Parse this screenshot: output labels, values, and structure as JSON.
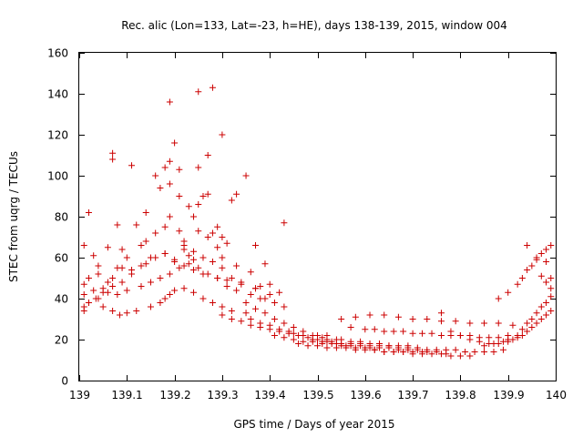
{
  "chart_data": {
    "type": "scatter",
    "title": "Rec. alic (Lon=133, Lat=-23, h=HE), days 138-139, 2015, window 004",
    "xlabel": "GPS time / Days of year 2015",
    "ylabel": "STEC from uqrg / TECUs",
    "xlim": [
      139,
      140
    ],
    "ylim": [
      0,
      160
    ],
    "x_ticks": [
      139,
      139.1,
      139.2,
      139.3,
      139.4,
      139.5,
      139.6,
      139.7,
      139.8,
      139.9,
      140
    ],
    "x_tick_labels": [
      "139",
      "139.1",
      "139.2",
      "139.3",
      "139.4",
      "139.5",
      "139.6",
      "139.7",
      "139.8",
      "139.9",
      "140"
    ],
    "y_ticks": [
      0,
      20,
      40,
      60,
      80,
      100,
      120,
      140,
      160
    ],
    "y_tick_labels": [
      "0",
      "20",
      "40",
      "60",
      "80",
      "100",
      "120",
      "140",
      "160"
    ],
    "grid": false,
    "legend": "none",
    "marker": "plus",
    "color": "#cc0000",
    "series": [
      {
        "x": [
          139.01,
          139.02,
          139.035,
          139.05,
          139.07,
          139.085,
          139.1,
          139.12,
          139.15,
          139.17,
          139.18,
          139.19,
          139.2,
          139.22,
          139.24,
          139.26,
          139.28,
          139.3,
          139.32,
          139.35,
          139.01,
          139.03,
          139.05,
          139.06,
          139.08,
          139.1,
          139.13,
          139.15,
          139.17,
          139.19,
          139.21,
          139.23,
          139.25,
          139.27,
          139.29,
          139.31,
          139.33,
          139.36,
          139.38,
          139.01,
          139.02,
          139.04,
          139.06,
          139.07,
          139.09,
          139.11,
          139.14,
          139.16,
          139.18,
          139.2,
          139.22,
          139.24,
          139.26,
          139.28,
          139.3,
          139.32,
          139.34,
          139.37,
          139.4,
          139.07,
          139.07,
          139.09,
          139.13,
          139.16,
          139.18,
          139.19,
          139.19,
          139.2,
          139.21,
          139.22,
          139.23,
          139.24,
          139.25,
          139.25,
          139.26,
          139.27,
          139.27,
          139.28,
          139.29,
          139.3,
          139.32,
          139.35,
          139.43,
          139.02,
          139.08,
          139.11,
          139.14,
          139.16,
          139.18,
          139.19,
          139.21,
          139.22,
          139.24,
          139.25,
          139.27,
          139.29,
          139.3,
          139.31,
          139.33,
          139.37,
          139.39,
          139.01,
          139.03,
          139.04,
          139.06,
          139.08,
          139.1,
          139.12,
          139.14,
          139.17,
          139.19,
          139.21,
          139.23,
          139.25,
          139.28,
          139.3,
          139.33,
          139.36,
          139.38,
          139.4,
          139.42,
          139.01,
          139.02,
          139.04,
          139.05,
          139.07,
          139.09,
          139.11,
          139.13,
          139.15,
          139.18,
          139.2,
          139.22,
          139.24,
          139.26,
          139.29,
          139.31,
          139.34,
          139.37,
          139.39,
          139.41,
          139.43,
          139.3,
          139.32,
          139.34,
          139.36,
          139.38,
          139.4,
          139.42,
          139.44,
          139.45,
          139.47,
          139.49,
          139.51,
          139.52,
          139.54,
          139.35,
          139.37,
          139.39,
          139.41,
          139.43,
          139.45,
          139.47,
          139.5,
          139.52,
          139.55,
          139.57,
          139.59,
          139.61,
          139.63,
          139.65,
          139.67,
          139.69,
          139.36,
          139.38,
          139.4,
          139.42,
          139.44,
          139.46,
          139.48,
          139.5,
          139.52,
          139.54,
          139.56,
          139.58,
          139.6,
          139.62,
          139.64,
          139.66,
          139.68,
          139.7,
          139.72,
          139.41,
          139.43,
          139.45,
          139.47,
          139.49,
          139.51,
          139.53,
          139.55,
          139.57,
          139.59,
          139.61,
          139.63,
          139.65,
          139.67,
          139.69,
          139.71,
          139.73,
          139.75,
          139.77,
          139.46,
          139.48,
          139.5,
          139.52,
          139.54,
          139.56,
          139.58,
          139.6,
          139.62,
          139.64,
          139.66,
          139.68,
          139.7,
          139.72,
          139.74,
          139.76,
          139.78,
          139.8,
          139.82,
          139.49,
          139.51,
          139.53,
          139.55,
          139.57,
          139.59,
          139.61,
          139.63,
          139.65,
          139.67,
          139.69,
          139.71,
          139.73,
          139.75,
          139.77,
          139.79,
          139.81,
          139.83,
          139.85,
          139.87,
          139.89,
          139.57,
          139.6,
          139.62,
          139.64,
          139.66,
          139.68,
          139.7,
          139.72,
          139.74,
          139.76,
          139.78,
          139.8,
          139.82,
          139.84,
          139.86,
          139.88,
          139.9,
          139.55,
          139.58,
          139.61,
          139.64,
          139.67,
          139.7,
          139.73,
          139.76,
          139.79,
          139.82,
          139.85,
          139.88,
          139.91,
          139.76,
          139.78,
          139.8,
          139.82,
          139.84,
          139.86,
          139.88,
          139.9,
          139.91,
          139.92,
          139.93,
          139.94,
          139.95,
          139.96,
          139.97,
          139.98,
          139.99,
          139.85,
          139.87,
          139.89,
          139.9,
          139.92,
          139.93,
          139.94,
          139.95,
          139.96,
          139.97,
          139.98,
          139.99,
          139.88,
          139.9,
          139.92,
          139.93,
          139.94,
          139.95,
          139.96,
          139.97,
          139.98,
          139.99,
          139.94,
          139.96,
          139.98,
          139.99,
          139.99,
          139.98,
          139.97
        ],
        "y": [
          36,
          38,
          40,
          36,
          34,
          32,
          33,
          34,
          36,
          38,
          40,
          42,
          44,
          45,
          43,
          40,
          38,
          36,
          34,
          33,
          42,
          44,
          45,
          43,
          42,
          44,
          46,
          48,
          50,
          52,
          55,
          57,
          55,
          52,
          50,
          46,
          44,
          42,
          40,
          47,
          50,
          52,
          48,
          50,
          55,
          54,
          57,
          60,
          62,
          59,
          66,
          63,
          60,
          58,
          55,
          50,
          48,
          45,
          42,
          108,
          111,
          64,
          66,
          72,
          75,
          96,
          107,
          116,
          73,
          64,
          61,
          80,
          104,
          141,
          90,
          110,
          70,
          143,
          65,
          120,
          88,
          100,
          77,
          82,
          76,
          105,
          82,
          100,
          104,
          136,
          103,
          68,
          59,
          86,
          91,
          75,
          70,
          67,
          91,
          66,
          57,
          66,
          61,
          56,
          65,
          55,
          60,
          76,
          68,
          94,
          80,
          90,
          85,
          73,
          72,
          60,
          56,
          53,
          46,
          47,
          43,
          34,
          38,
          40,
          43,
          46,
          48,
          52,
          56,
          60,
          62,
          58,
          56,
          54,
          52,
          50,
          49,
          47,
          45,
          40,
          38,
          36,
          32,
          30,
          29,
          30,
          28,
          27,
          25,
          24,
          23,
          22,
          22,
          21,
          20,
          20,
          38,
          35,
          33,
          30,
          28,
          26,
          24,
          22,
          22,
          20,
          19,
          19,
          18,
          18,
          17,
          17,
          17,
          27,
          26,
          25,
          24,
          23,
          22,
          21,
          20,
          19,
          18,
          17,
          16,
          16,
          15,
          14,
          14,
          14,
          14,
          14,
          22,
          21,
          20,
          19,
          19,
          18,
          18,
          17,
          17,
          17,
          16,
          16,
          16,
          15,
          15,
          15,
          14,
          14,
          13,
          18,
          17,
          17,
          16,
          16,
          16,
          15,
          15,
          15,
          14,
          14,
          14,
          13,
          13,
          13,
          13,
          12,
          12,
          12,
          20,
          19,
          19,
          18,
          18,
          18,
          17,
          17,
          17,
          16,
          16,
          16,
          15,
          15,
          15,
          15,
          14,
          14,
          14,
          14,
          15,
          26,
          25,
          25,
          24,
          24,
          24,
          23,
          23,
          23,
          22,
          22,
          22,
          22,
          21,
          21,
          21,
          22,
          30,
          31,
          32,
          32,
          31,
          30,
          30,
          29,
          29,
          28,
          28,
          28,
          27,
          33,
          24,
          22,
          20,
          19,
          18,
          18,
          19,
          20,
          21,
          22,
          24,
          26,
          28,
          30,
          32,
          34,
          17,
          18,
          19,
          20,
          22,
          25,
          28,
          30,
          33,
          36,
          38,
          41,
          40,
          43,
          47,
          50,
          54,
          56,
          59,
          62,
          64,
          66,
          66,
          60,
          58,
          50,
          45,
          48,
          51
        ]
      }
    ]
  }
}
